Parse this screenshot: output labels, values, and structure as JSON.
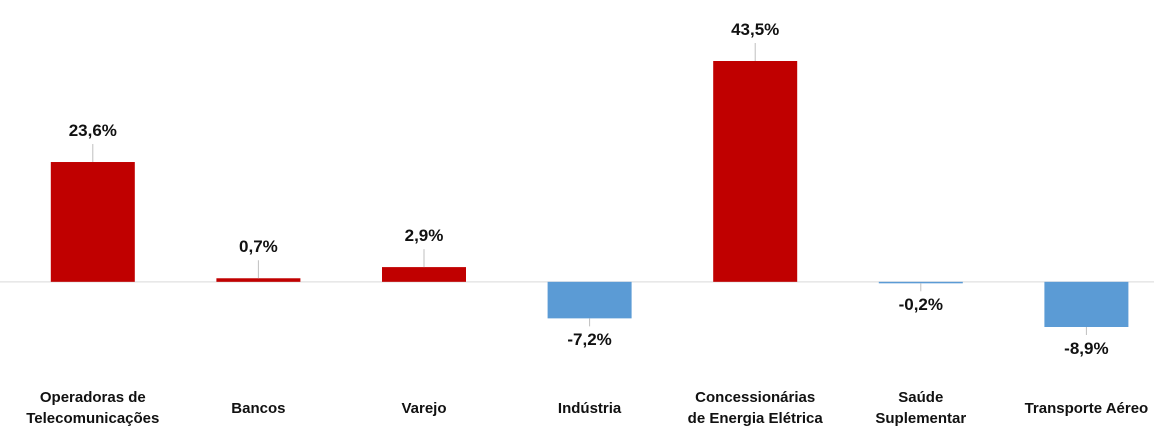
{
  "chart_data": {
    "type": "bar",
    "categories": [
      "Operadoras de Telecomunicações",
      "Bancos",
      "Varejo",
      "Indústria",
      "Concessionárias de Energia Elétrica",
      "Saúde Suplementar",
      "Transporte Aéreo"
    ],
    "values": [
      23.6,
      0.7,
      2.9,
      -7.2,
      43.5,
      -0.2,
      -8.9
    ],
    "value_labels": [
      "23,6%",
      "0,7%",
      "2,9%",
      "-7,2%",
      "43,5%",
      "-0,2%",
      "-8,9%"
    ],
    "positive_color": "#c00000",
    "negative_color": "#5b9bd5"
  }
}
